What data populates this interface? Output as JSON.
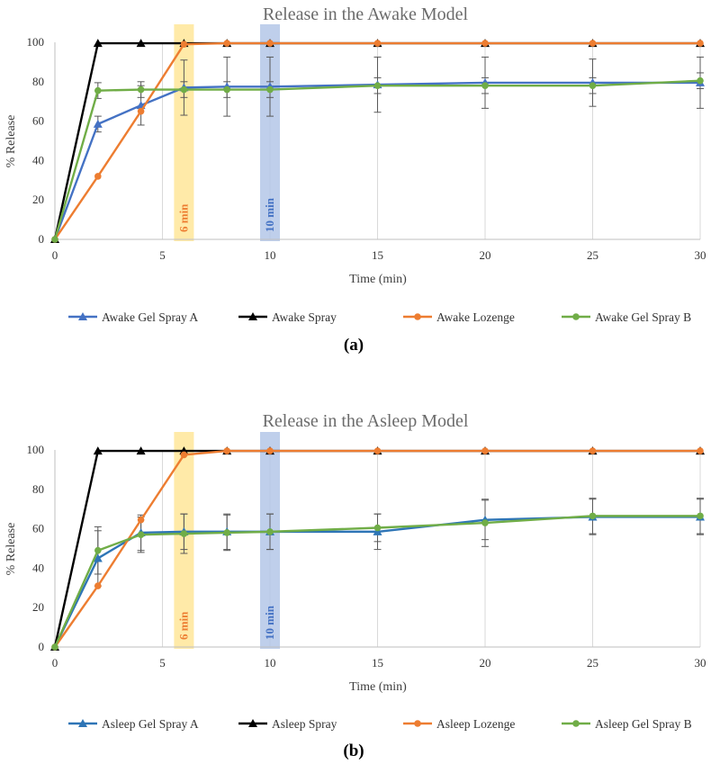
{
  "colors": {
    "gel_a": "#4472c4",
    "spray": "#000000",
    "lozenge": "#ed7d31",
    "gel_b": "#70ad47",
    "highlight_6": "#ffe699",
    "highlight_10": "#b4c7e7",
    "label_6": "#ed7d31",
    "label_10": "#4472c4",
    "gel_a_asleep": "#2e75b6"
  },
  "chart_data": [
    {
      "type": "line",
      "panel_label": "(a)",
      "title": "Release in the Awake Model",
      "xlabel": "Time (min)",
      "ylabel": "% Release",
      "xlim": [
        0,
        30
      ],
      "ylim": [
        0,
        100
      ],
      "xticks": [
        "0",
        "5",
        "10",
        "15",
        "20",
        "25",
        "30"
      ],
      "yticks": [
        "0",
        "20",
        "40",
        "60",
        "80",
        "100"
      ],
      "grid": "vertical",
      "legend_position": "bottom",
      "highlights": [
        {
          "x": 6,
          "label": "6 min",
          "color_key": "highlight_6",
          "text_key": "label_6"
        },
        {
          "x": 10,
          "label": "10 min",
          "color_key": "highlight_10",
          "text_key": "label_10"
        }
      ],
      "series": [
        {
          "name": "Awake Gel Spray A",
          "marker": "triangle",
          "color_key": "gel_a",
          "x": [
            0,
            2,
            4,
            6,
            8,
            10,
            15,
            20,
            25,
            30
          ],
          "y": [
            0,
            58.5,
            68,
            77,
            77.5,
            77.5,
            78.5,
            79.5,
            79.5,
            79.5
          ],
          "err": [
            0,
            4,
            10,
            14,
            15,
            15,
            14,
            13,
            12,
            13
          ]
        },
        {
          "name": "Awake Spray",
          "marker": "triangle",
          "color_key": "spray",
          "x": [
            0,
            2,
            4,
            6,
            8,
            10,
            15,
            20,
            25,
            30
          ],
          "y": [
            0,
            99.5,
            99.5,
            99.5,
            99.5,
            99.5,
            99.5,
            99.5,
            99.5,
            99.5
          ],
          "err": [
            0,
            0,
            0,
            0,
            0,
            0,
            0,
            0,
            0,
            0
          ]
        },
        {
          "name": "Awake Lozenge",
          "marker": "circle",
          "color_key": "lozenge",
          "x": [
            0,
            2,
            4,
            6,
            8,
            10,
            15,
            20,
            25,
            30
          ],
          "y": [
            0,
            32,
            65,
            99,
            99.5,
            99.5,
            99.5,
            99.5,
            99.5,
            99.5
          ],
          "err": [
            0,
            0,
            0,
            0,
            0,
            0,
            0,
            0,
            0,
            0
          ]
        },
        {
          "name": "Awake Gel Spray B",
          "marker": "circle",
          "color_key": "gel_b",
          "x": [
            0,
            2,
            4,
            6,
            8,
            10,
            15,
            20,
            25,
            30
          ],
          "y": [
            0,
            75.5,
            76,
            76,
            76,
            76,
            78,
            78,
            78,
            80.5
          ],
          "err": [
            0,
            4,
            4,
            4,
            4,
            4,
            4,
            4,
            4,
            4
          ]
        }
      ]
    },
    {
      "type": "line",
      "panel_label": "(b)",
      "title": "Release in the Asleep Model",
      "xlabel": "Time (min)",
      "ylabel": "% Release",
      "xlim": [
        0,
        30
      ],
      "ylim": [
        0,
        100
      ],
      "xticks": [
        "0",
        "5",
        "10",
        "15",
        "20",
        "25",
        "30"
      ],
      "yticks": [
        "0",
        "20",
        "40",
        "60",
        "80",
        "100"
      ],
      "grid": "vertical",
      "legend_position": "bottom",
      "highlights": [
        {
          "x": 6,
          "label": "6 min",
          "color_key": "highlight_6",
          "text_key": "label_6"
        },
        {
          "x": 10,
          "label": "10 min",
          "color_key": "highlight_10",
          "text_key": "label_10"
        }
      ],
      "series": [
        {
          "name": "Asleep Gel Spray A",
          "marker": "triangle",
          "color_key": "gel_a_asleep",
          "x": [
            0,
            2,
            4,
            6,
            8,
            10,
            15,
            20,
            25,
            30
          ],
          "y": [
            0,
            45,
            58,
            58.5,
            58.5,
            58.5,
            58.5,
            64.5,
            66,
            66
          ],
          "err": [
            0,
            14,
            9,
            9,
            9,
            9,
            9,
            10,
            9,
            9
          ]
        },
        {
          "name": "Asleep Spray",
          "marker": "triangle",
          "color_key": "spray",
          "x": [
            0,
            2,
            4,
            6,
            8,
            10,
            15,
            20,
            25,
            30
          ],
          "y": [
            0,
            99.5,
            99.5,
            99.5,
            99.5,
            99.5,
            99.5,
            99.5,
            99.5,
            99.5
          ],
          "err": [
            0,
            0,
            0,
            0,
            0,
            0,
            0,
            0,
            0,
            0
          ]
        },
        {
          "name": "Asleep Lozenge",
          "marker": "circle",
          "color_key": "lozenge",
          "x": [
            0,
            2,
            4,
            6,
            8,
            10,
            15,
            20,
            25,
            30
          ],
          "y": [
            0,
            31,
            64.5,
            97.5,
            99.5,
            99.5,
            99.5,
            99.5,
            99.5,
            99.5
          ],
          "err": [
            0,
            0,
            0,
            0,
            0,
            0,
            0,
            0,
            0,
            0
          ]
        },
        {
          "name": "Asleep Gel Spray B",
          "marker": "circle",
          "color_key": "gel_b",
          "x": [
            0,
            2,
            4,
            6,
            8,
            10,
            15,
            20,
            25,
            30
          ],
          "y": [
            0,
            49,
            57,
            57.5,
            58,
            58.5,
            60.5,
            63,
            66.5,
            66.5
          ],
          "err": [
            0,
            12,
            9,
            10,
            9,
            9,
            7,
            12,
            9,
            9
          ]
        }
      ]
    }
  ]
}
